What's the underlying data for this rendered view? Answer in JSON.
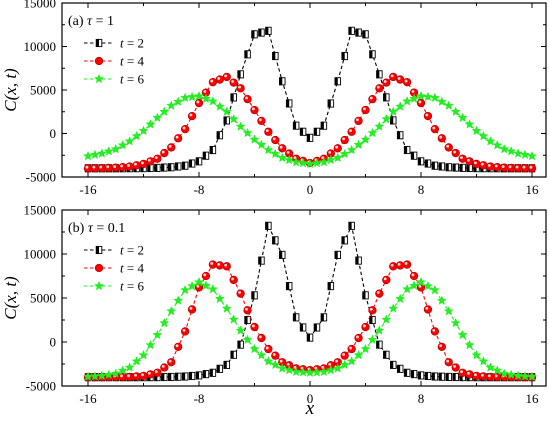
{
  "chart_data": [
    {
      "type": "line",
      "panel_label": "(a)",
      "param_symbol": "τ",
      "param_value": "1",
      "xlabel": "x",
      "ylabel": "C(x, t)",
      "xlim": [
        -16,
        16
      ],
      "ylim": [
        -5000,
        15000
      ],
      "xticks": [
        -16,
        -8,
        0,
        8,
        16
      ],
      "yticks": [
        -5000,
        0,
        5000,
        10000,
        15000
      ],
      "x": [
        -16,
        -15,
        -14,
        -13,
        -12,
        -11,
        -10,
        -9,
        -8,
        -7,
        -6,
        -5,
        -4,
        -3,
        -2,
        -1,
        0,
        1,
        2,
        3,
        4,
        5,
        6,
        7,
        8,
        9,
        10,
        11,
        12,
        13,
        14,
        15,
        16
      ],
      "series": [
        {
          "name": "t = 2",
          "color": "#000000",
          "marker": "square",
          "values": [
            -4000,
            -4000,
            -4000,
            -3990,
            -3980,
            -3950,
            -3880,
            -3700,
            -3200,
            -1900,
            1500,
            6800,
            11400,
            11800,
            6000,
            900,
            -500,
            900,
            6000,
            11800,
            11400,
            6800,
            1500,
            -1900,
            -3200,
            -3700,
            -3880,
            -3950,
            -3980,
            -3990,
            -4000,
            -4000,
            -4000
          ]
        },
        {
          "name": "t = 4",
          "color": "#ff0000",
          "marker": "circle",
          "values": [
            -4000,
            -3980,
            -3930,
            -3800,
            -3500,
            -2900,
            -1600,
            500,
            3500,
            5900,
            6500,
            5200,
            2700,
            200,
            -1700,
            -2900,
            -3400,
            -2900,
            -1700,
            200,
            2700,
            5200,
            6500,
            5900,
            3500,
            500,
            -1600,
            -2900,
            -3500,
            -3800,
            -3930,
            -3980,
            -4000
          ]
        },
        {
          "name": "t = 6",
          "color": "#22ee22",
          "marker": "star",
          "values": [
            -2600,
            -2300,
            -1800,
            -900,
            300,
            1800,
            3200,
            4100,
            4300,
            3700,
            2500,
            800,
            -700,
            -1900,
            -2800,
            -3300,
            -3500,
            -3300,
            -2800,
            -1900,
            -700,
            800,
            2500,
            3700,
            4300,
            4100,
            3200,
            1800,
            300,
            -900,
            -1800,
            -2300,
            -2600
          ]
        }
      ]
    },
    {
      "type": "line",
      "panel_label": "(b)",
      "param_symbol": "τ",
      "param_value": "0.1",
      "xlabel": "x",
      "ylabel": "C(x, t)",
      "xlim": [
        -16,
        16
      ],
      "ylim": [
        -5000,
        15000
      ],
      "xticks": [
        -16,
        -8,
        0,
        8,
        16
      ],
      "yticks": [
        -5000,
        0,
        5000,
        10000,
        15000
      ],
      "x": [
        -16,
        -15,
        -14,
        -13,
        -12,
        -11,
        -10,
        -9,
        -8,
        -7,
        -6,
        -5,
        -4,
        -3,
        -2,
        -1,
        0,
        1,
        2,
        3,
        4,
        5,
        6,
        7,
        8,
        9,
        10,
        11,
        12,
        13,
        14,
        15,
        16
      ],
      "series": [
        {
          "name": "t = 2",
          "color": "#000000",
          "marker": "square",
          "values": [
            -4000,
            -4000,
            -4000,
            -4000,
            -4000,
            -3990,
            -3970,
            -3920,
            -3800,
            -3500,
            -2600,
            -300,
            5300,
            13200,
            9900,
            2800,
            500,
            2800,
            9900,
            13200,
            5300,
            -300,
            -2600,
            -3500,
            -3800,
            -3920,
            -3970,
            -3990,
            -4000,
            -4000,
            -4000,
            -4000,
            -4000
          ]
        },
        {
          "name": "t = 4",
          "color": "#ff0000",
          "marker": "circle",
          "values": [
            -4000,
            -4000,
            -3990,
            -3960,
            -3850,
            -3500,
            -2300,
            1200,
            6200,
            8800,
            8600,
            5500,
            1700,
            -800,
            -2300,
            -3000,
            -3200,
            -3000,
            -2300,
            -800,
            1700,
            5500,
            8600,
            8800,
            6200,
            1200,
            -2300,
            -3500,
            -3850,
            -3960,
            -3990,
            -4000,
            -4000
          ]
        },
        {
          "name": "t = 6",
          "color": "#22ee22",
          "marker": "star",
          "values": [
            -3950,
            -3850,
            -3600,
            -2900,
            -1500,
            800,
            3500,
            5900,
            6800,
            6000,
            3800,
            1300,
            -800,
            -2200,
            -3000,
            -3400,
            -3500,
            -3400,
            -3000,
            -2200,
            -800,
            1300,
            3800,
            6000,
            6800,
            5900,
            3500,
            800,
            -1500,
            -2900,
            -3600,
            -3850,
            -3950
          ]
        }
      ]
    }
  ]
}
